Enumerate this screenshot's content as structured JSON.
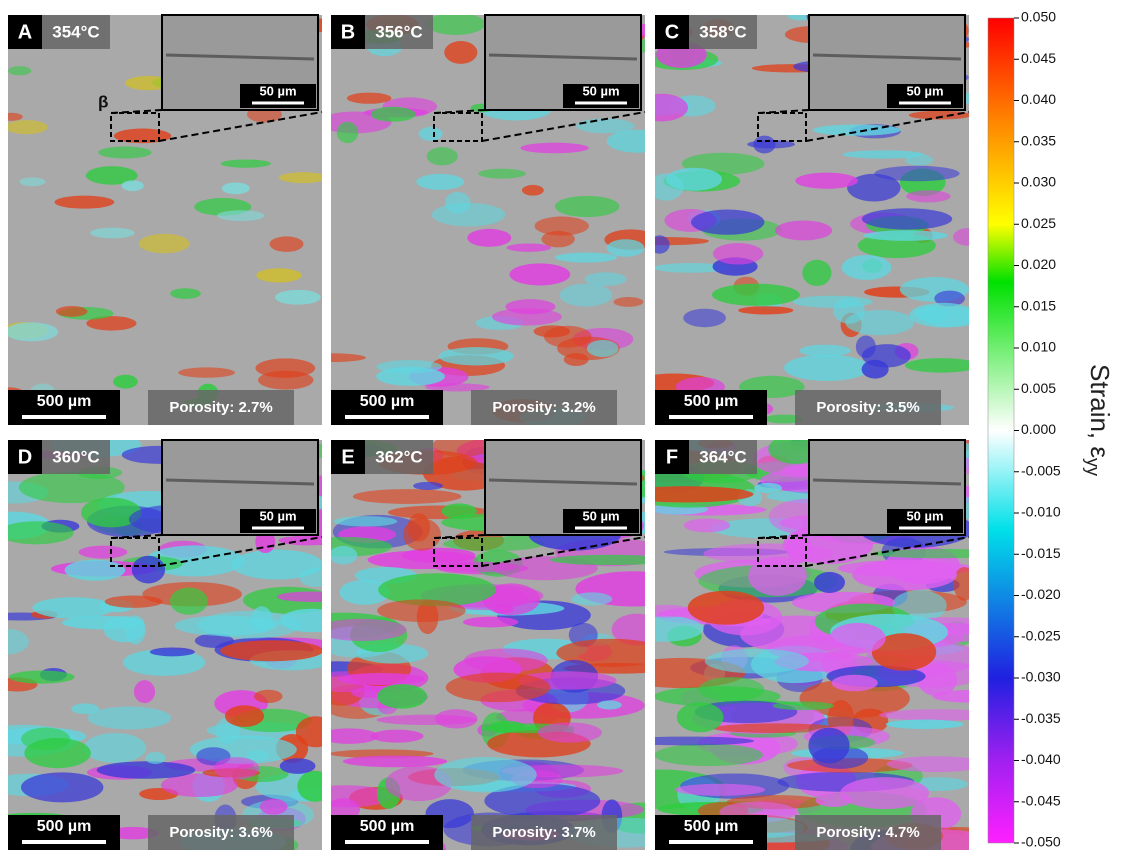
{
  "panels": [
    {
      "letter": "A",
      "temperature": "354°C",
      "scale_bar": "500 µm",
      "inset_scale_bar": "50 µm",
      "porosity": "Porosity: 2.7%"
    },
    {
      "letter": "B",
      "temperature": "356°C",
      "scale_bar": "500 µm",
      "inset_scale_bar": "50 µm",
      "porosity": "Porosity: 3.2%"
    },
    {
      "letter": "C",
      "temperature": "358°C",
      "scale_bar": "500 µm",
      "inset_scale_bar": "50 µm",
      "porosity": "Porosity: 3.5%"
    },
    {
      "letter": "D",
      "temperature": "360°C",
      "scale_bar": "500 µm",
      "inset_scale_bar": "50 µm",
      "porosity": "Porosity: 3.6%"
    },
    {
      "letter": "E",
      "temperature": "362°C",
      "scale_bar": "500 µm",
      "inset_scale_bar": "50 µm",
      "porosity": "Porosity: 3.7%"
    },
    {
      "letter": "F",
      "temperature": "364°C",
      "scale_bar": "500 µm",
      "inset_scale_bar": "50 µm",
      "porosity": "Porosity: 4.7%"
    }
  ],
  "beta_label": "β",
  "colorbar": {
    "ticks": [
      "0.050",
      "0.045",
      "0.040",
      "0.035",
      "0.030",
      "0.025",
      "0.020",
      "0.015",
      "0.010",
      "0.005",
      "0.000",
      "-0.005",
      "-0.010",
      "-0.015",
      "-0.020",
      "-0.025",
      "-0.030",
      "-0.035",
      "-0.040",
      "-0.045",
      "-0.050"
    ],
    "label": "Strain, ε",
    "label_subscript": "yy"
  }
}
